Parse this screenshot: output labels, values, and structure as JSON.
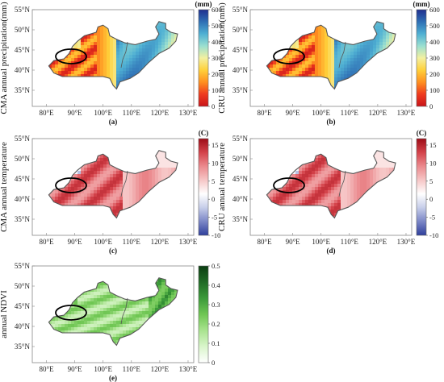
{
  "panels": [
    {
      "id": "a",
      "ylabel": "CMA annual precipitation(mm)",
      "caption": "(a)",
      "unit": "(mm)",
      "ticks": [
        "600",
        "500",
        "400",
        "300",
        "200",
        "100",
        "0"
      ],
      "scale": "precip"
    },
    {
      "id": "b",
      "ylabel": "CRU annual precipitation(mm)",
      "caption": "(b)",
      "unit": "(mm)",
      "ticks": [
        "600",
        "500",
        "400",
        "300",
        "200",
        "100",
        "0"
      ],
      "scale": "precip"
    },
    {
      "id": "c",
      "ylabel": "CMA annual temperature",
      "caption": "(c)",
      "unit": "(C)",
      "ticks": [
        "15",
        "10",
        "5",
        "0",
        "-5",
        "-10"
      ],
      "scale": "temp"
    },
    {
      "id": "d",
      "ylabel": "CRU annual temperature",
      "caption": "(d)",
      "unit": "(C)",
      "ticks": [
        "15",
        "10",
        "5",
        "0",
        "-5",
        "-10"
      ],
      "scale": "temp"
    },
    {
      "id": "e",
      "ylabel": "annual NDVI",
      "caption": "(e)",
      "unit": "",
      "ticks": [
        "0.5",
        "0.4",
        "0.3",
        "0.2",
        "0.1",
        "0"
      ],
      "scale": "ndvi"
    }
  ],
  "lat_labels": [
    "55°N",
    "50°N",
    "45°N",
    "40°N",
    "35°N"
  ],
  "lon_labels": [
    "80°E",
    "90°E",
    "100°E",
    "110°E",
    "120°E",
    "130°E"
  ],
  "colorscales": {
    "precip": [
      "#1f2f8f",
      "#2f6fb5",
      "#4fb0d3",
      "#9adfd0",
      "#f3f0a0",
      "#ffd03a",
      "#ff9020",
      "#ef3a1e",
      "#c8141a"
    ],
    "temp": [
      "#9d0c17",
      "#d4424a",
      "#eb8a8e",
      "#f6c6c6",
      "#ffffff",
      "#c6cde9",
      "#7b86c6",
      "#2f3f9c"
    ],
    "ndvi": [
      "#0b3d12",
      "#1f6a25",
      "#3b9a3a",
      "#6fc653",
      "#a9e38f",
      "#d9f5cb",
      "#ffffff"
    ]
  }
}
